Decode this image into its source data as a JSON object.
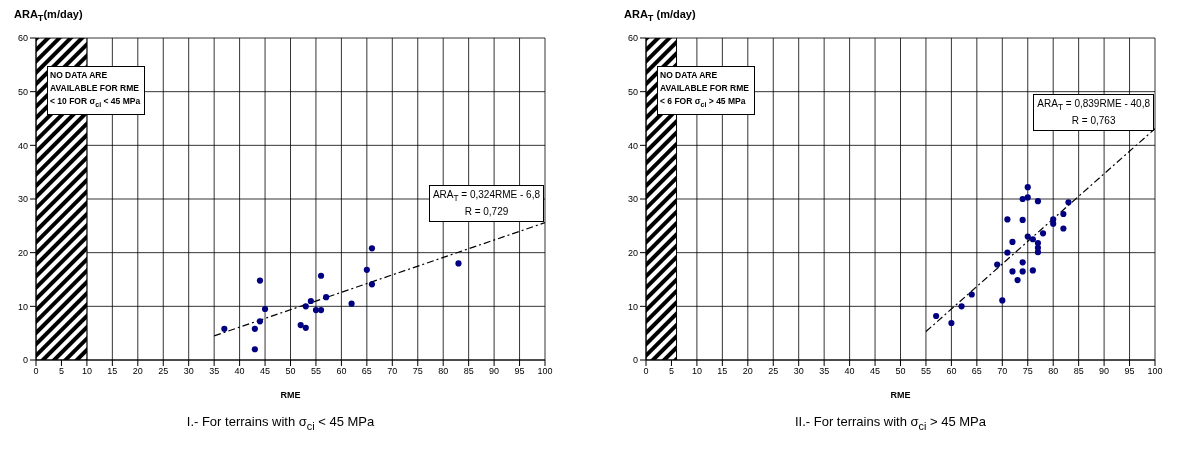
{
  "chart_data": [
    {
      "type": "scatter",
      "subtitle": "I.- For terrains with σ$_{ci}$ < 45 MPa",
      "xlabel": "RME",
      "ylabel": "ARA$_{T}$(m/day)",
      "xlim": [
        0,
        100
      ],
      "xticks": [
        0,
        5,
        10,
        15,
        20,
        25,
        30,
        35,
        40,
        45,
        50,
        55,
        60,
        65,
        70,
        75,
        80,
        85,
        90,
        95,
        100
      ],
      "ylim": [
        0,
        60
      ],
      "yticks": [
        0,
        10,
        20,
        30,
        40,
        50,
        60
      ],
      "grid": true,
      "marker": "circle",
      "bands": [
        {
          "axis": "x",
          "from": 0,
          "to": 10,
          "label": "NO DATA ARE AVAILABLE FOR RME < 10 FOR σ$_{ci}$ < 45 MPa"
        }
      ],
      "annotations": [
        "ARA$_{T}$ = 0,324RME - 6,8",
        "R = 0,729"
      ],
      "series": [
        {
          "color": "#000080",
          "x": [
            37,
            43,
            43,
            44,
            44,
            45,
            52,
            53,
            53,
            54,
            55,
            56,
            56,
            57,
            62,
            65,
            66,
            66,
            83
          ],
          "values": [
            5.8,
            5.8,
            2.0,
            7.2,
            14.8,
            9.5,
            6.5,
            6.0,
            10.0,
            11.0,
            9.3,
            9.3,
            15.7,
            11.7,
            10.5,
            16.8,
            20.8,
            14.1,
            18.0
          ]
        },
        {
          "type": "line",
          "color": "#000000",
          "line_style": "dashed",
          "marker": "none",
          "x": [
            35,
            100
          ],
          "values": [
            4.5,
            25.6
          ]
        }
      ]
    },
    {
      "type": "scatter",
      "subtitle": "II.- For terrains with σ$_{ci}$ > 45 MPa",
      "xlabel": "RME",
      "ylabel": "ARA$_{T}$ (m/day)",
      "xlim": [
        0,
        100
      ],
      "xticks": [
        0,
        5,
        10,
        15,
        20,
        25,
        30,
        35,
        40,
        45,
        50,
        55,
        60,
        65,
        70,
        75,
        80,
        85,
        90,
        95,
        100
      ],
      "ylim": [
        0,
        60
      ],
      "yticks": [
        0,
        10,
        20,
        30,
        40,
        50,
        60
      ],
      "grid": true,
      "marker": "circle",
      "bands": [
        {
          "axis": "x",
          "from": 0,
          "to": 6,
          "label": "NO DATA ARE AVAILABLE FOR RME < 6 FOR σ$_{ci}$ > 45 MPa"
        }
      ],
      "annotations": [
        "ARA$_{T}$ = 0,839RME - 40,8",
        "R = 0,763"
      ],
      "series": [
        {
          "color": "#000080",
          "x": [
            57,
            60,
            62,
            64,
            69,
            70,
            71,
            71,
            72,
            72,
            73,
            74,
            74,
            74,
            74,
            75,
            75,
            75,
            76,
            76,
            77,
            77,
            77,
            77,
            78,
            80,
            80,
            82,
            82,
            83
          ],
          "values": [
            8.2,
            6.9,
            10.0,
            12.2,
            17.8,
            11.1,
            20.0,
            26.2,
            22.0,
            16.5,
            14.9,
            30.0,
            26.1,
            18.2,
            16.5,
            32.2,
            30.3,
            23.0,
            22.5,
            16.7,
            29.6,
            21.8,
            20.9,
            20.1,
            23.6,
            26.2,
            25.4,
            27.2,
            24.5,
            29.4
          ]
        },
        {
          "type": "line",
          "color": "#000000",
          "line_style": "dashed",
          "marker": "none",
          "x": [
            55,
            100
          ],
          "values": [
            5.3,
            43.1
          ]
        }
      ]
    }
  ]
}
